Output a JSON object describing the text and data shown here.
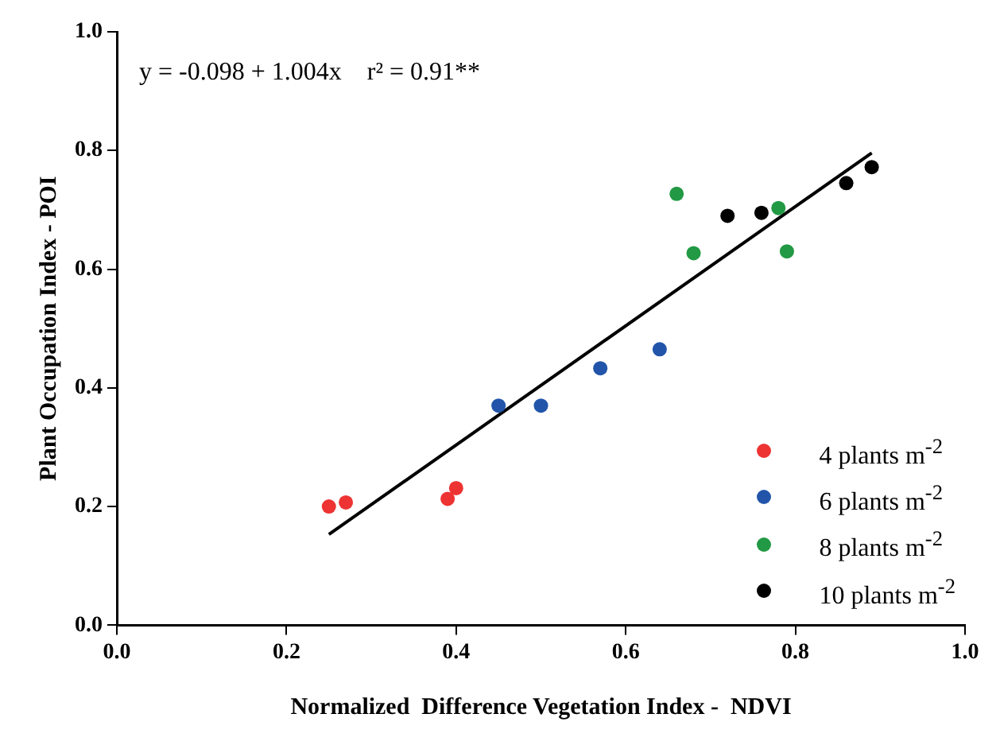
{
  "chart_data": {
    "type": "scatter",
    "xlabel": "Normalized  Difference Vegetation Index -  NDVI",
    "ylabel": "Plant Occupation Index - POI",
    "xlim": [
      0,
      1
    ],
    "ylim": [
      0,
      1
    ],
    "xticks": [
      {
        "value": 0,
        "label": "0.0"
      },
      0.2,
      0.4,
      0.6,
      0.8,
      {
        "value": 1,
        "label": "1.0"
      }
    ],
    "yticks": [
      {
        "value": 0,
        "label": "0.0"
      },
      0.2,
      0.4,
      0.6,
      0.8,
      {
        "value": 1,
        "label": "1.0"
      }
    ],
    "grid": false,
    "legend": "bottom right",
    "marker": "circle",
    "annotations": [
      "y = -0.098 + 1.004x    r² = 0.91**"
    ],
    "series": [
      {
        "name": "4 plants m$^{-2}$",
        "color": "#ee3333",
        "x": [
          0.25,
          0.27,
          0.39,
          0.4
        ],
        "values": [
          0.2,
          0.207,
          0.213,
          0.231
        ]
      },
      {
        "name": "6 plants m$^{-2}$",
        "color": "#2255aa",
        "x": [
          0.45,
          0.5,
          0.57,
          0.64
        ],
        "values": [
          0.37,
          0.37,
          0.433,
          0.465
        ]
      },
      {
        "name": "8 plants m$^{-2}$",
        "color": "#229944",
        "x": [
          0.66,
          0.68,
          0.78,
          0.79
        ],
        "values": [
          0.727,
          0.627,
          0.703,
          0.63
        ]
      },
      {
        "name": "10 plants m$^{-2}$",
        "color": "#000000",
        "x": [
          0.72,
          0.76,
          0.86,
          0.89
        ],
        "values": [
          0.69,
          0.695,
          0.745,
          0.772
        ]
      },
      {
        "type": "line",
        "color": "#000000",
        "x": [
          0.25,
          0.89
        ],
        "values": [
          0.153,
          0.796
        ],
        "marker": "none",
        "line_style": "solid"
      }
    ]
  }
}
